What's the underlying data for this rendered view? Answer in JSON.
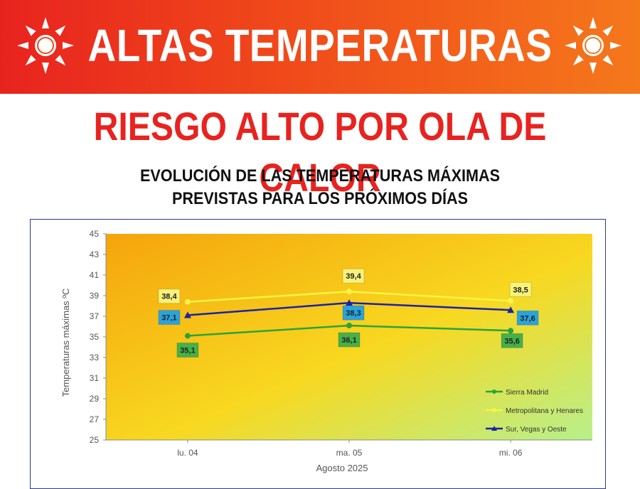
{
  "header": {
    "title": "ALTAS TEMPERATURAS",
    "icon": "sun-icon",
    "colors": {
      "banner_start": "#e8231f",
      "banner_end": "#f5781b",
      "text": "#ffffff"
    }
  },
  "risk_banner": {
    "text": "RIESGO ALTO POR OLA DE CALOR",
    "color": "#e8231f"
  },
  "subtitle": {
    "line1": "EVOLUCIÓN DE LAS TEMPERATURAS MÁXIMAS",
    "line2": "PREVISTAS PARA LOS PRÓXIMOS DÍAS"
  },
  "chart_data": {
    "type": "line",
    "categories": [
      "lu. 04",
      "ma. 05",
      "mi. 06"
    ],
    "xlabel": "Agosto 2025",
    "ylabel": "Temperaturas máximas ºC",
    "ylim": [
      25,
      45
    ],
    "yticks": [
      "25",
      "27",
      "29",
      "31",
      "33",
      "35",
      "37",
      "39",
      "41",
      "43",
      "45"
    ],
    "grid": false,
    "legend_placement": "bottom-right",
    "series": [
      {
        "name": "Sierra Madrid",
        "values": [
          35.1,
          36.1,
          35.6
        ],
        "labels": [
          "35,1",
          "36,1",
          "35,6"
        ],
        "color": "#2aa43a",
        "label_bg": "#46b04a",
        "marker": "circle",
        "label_side": "below"
      },
      {
        "name": "Metropolitana y Henares",
        "values": [
          38.4,
          39.4,
          38.5
        ],
        "labels": [
          "38,4",
          "39,4",
          "38,5"
        ],
        "color": "#f5f545",
        "label_bg": "#f7f27a",
        "marker": "circle",
        "label_side": "above"
      },
      {
        "name": "Sur, Vegas y Oeste",
        "values": [
          37.1,
          38.3,
          37.6
        ],
        "labels": [
          "37,1",
          "38,3",
          "37,6"
        ],
        "color": "#1a22a8",
        "label_bg": "#2aa3dc",
        "marker": "triangle",
        "label_side": "mixed"
      }
    ],
    "plot_colors": {
      "warm": "#f5a40c",
      "mid": "#f8d820",
      "cool": "#b8f08c"
    }
  }
}
